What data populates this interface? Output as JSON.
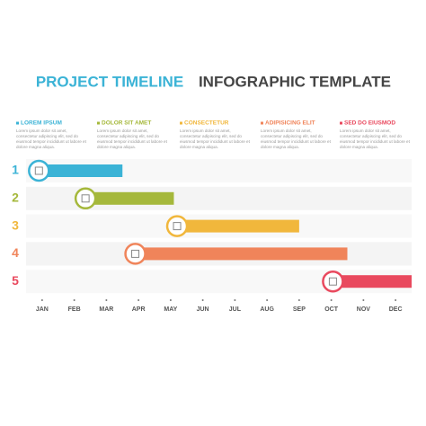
{
  "chart_data": {
    "type": "gantt",
    "title": "PROJECT TIMELINE",
    "subtitle": "INFOGRAPHIC TEMPLATE",
    "xlim": [
      -0.5,
      11.5
    ],
    "xticks": [
      {
        "value": 0,
        "label": "JAN"
      },
      {
        "value": 1,
        "label": "FEB"
      },
      {
        "value": 2,
        "label": "MAR"
      },
      {
        "value": 3,
        "label": "APR"
      },
      {
        "value": 4,
        "label": "MAY"
      },
      {
        "value": 5,
        "label": "JUN"
      },
      {
        "value": 6,
        "label": "JUL"
      },
      {
        "value": 7,
        "label": "AUG"
      },
      {
        "value": 8,
        "label": "SEP"
      },
      {
        "value": 9,
        "label": "OCT"
      },
      {
        "value": 10,
        "label": "NOV"
      },
      {
        "value": 11,
        "label": "DEC"
      }
    ],
    "series": [
      {
        "name": "LOREM IPSUM",
        "label": "1",
        "color": "#3bb3d6",
        "description": "Lorem ipsum dolor sit amet, consectetur adipiscing elit, sed do eiusmod tempor incididunt ut labore et dolore magna aliqua.",
        "start": -0.1,
        "end": 2.5
      },
      {
        "name": "DOLOR SIT AMET",
        "label": "2",
        "color": "#a5b83b",
        "description": "Lorem ipsum dolor sit amet, consectetur adipiscing elit, sed do eiusmod tempor incididunt ut labore et dolore magna aliqua.",
        "start": 1.35,
        "end": 4.1
      },
      {
        "name": "CONSECTETUR",
        "label": "3",
        "color": "#f1b73c",
        "description": "Lorem ipsum dolor sit amet, consectetur adipiscing elit, sed do eiusmod tempor incididunt ut labore et dolore magna aliqua.",
        "start": 4.2,
        "end": 8.0
      },
      {
        "name": "ADIPISICING ELIT",
        "label": "4",
        "color": "#f0845a",
        "description": "Lorem ipsum dolor sit amet, consectetur adipiscing elit, sed do eiusmod tempor incididunt ut labore et dolore magna aliqua.",
        "start": 2.9,
        "end": 9.5
      },
      {
        "name": "SED DO EIUSMOD",
        "label": "5",
        "color": "#e9495e",
        "description": "Lorem ipsum dolor sit amet, consectetur adipiscing elit, sed do eiusmod tempor incididunt ut labore et dolore magna aliqua.",
        "start": 9.05,
        "end": 11.5
      }
    ]
  }
}
